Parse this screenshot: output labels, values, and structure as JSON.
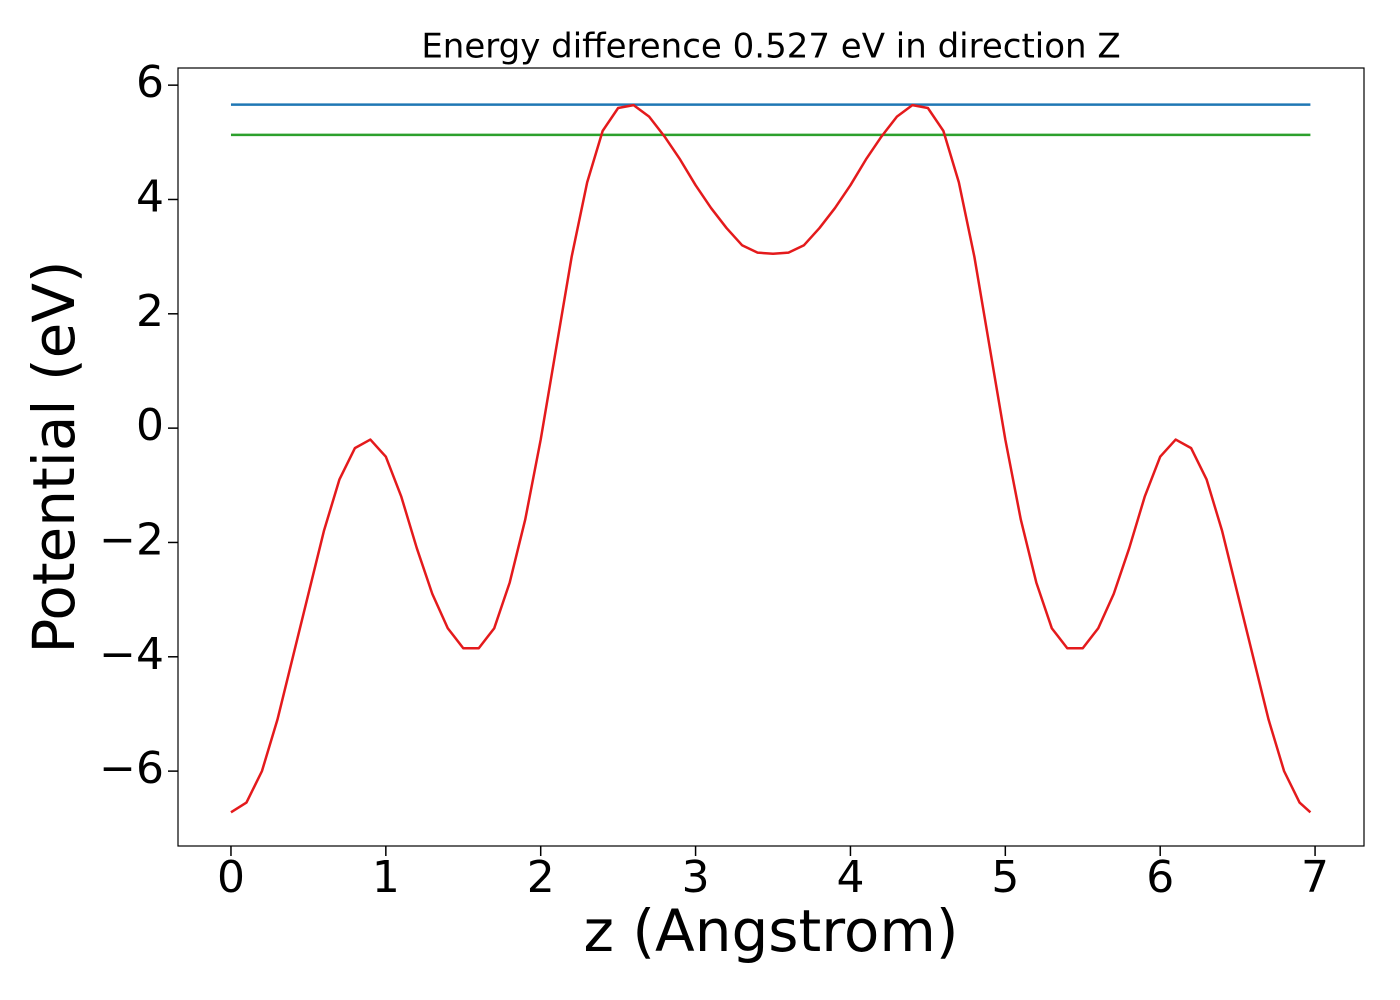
{
  "chart_data": {
    "type": "line",
    "title": "Energy difference 0.527 eV in direction Z",
    "xlabel": "z (Angstrom)",
    "ylabel": "Potential (eV)",
    "xlim": [
      -0.342,
      7.316
    ],
    "ylim": [
      -7.31,
      6.3
    ],
    "xticks": [
      0,
      1,
      2,
      3,
      4,
      5,
      6,
      7
    ],
    "yticks": [
      {
        "value": -6,
        "label": "−6"
      },
      {
        "value": -4,
        "label": "−4"
      },
      {
        "value": -2,
        "label": "−2"
      },
      0,
      2,
      4,
      6
    ],
    "series": [
      {
        "color": "#1f77b4",
        "x": [
          0,
          6.97
        ],
        "values": [
          5.66,
          5.66
        ]
      },
      {
        "color": "#2ca02c",
        "x": [
          0,
          6.97
        ],
        "values": [
          5.13,
          5.13
        ]
      },
      {
        "color": "#e41a1c",
        "x": [
          0,
          0.1,
          0.2,
          0.3,
          0.4,
          0.5,
          0.6,
          0.7,
          0.8,
          0.9,
          1.0,
          1.1,
          1.2,
          1.3,
          1.4,
          1.5,
          1.6,
          1.7,
          1.8,
          1.9,
          2.0,
          2.1,
          2.2,
          2.3,
          2.4,
          2.5,
          2.6,
          2.7,
          2.8,
          2.9,
          3.0,
          3.1,
          3.2,
          3.3,
          3.4,
          3.5,
          3.6,
          3.7,
          3.8,
          3.9,
          4.0,
          4.1,
          4.2,
          4.3,
          4.4,
          4.5,
          4.6,
          4.7,
          4.8,
          4.9,
          5.0,
          5.1,
          5.2,
          5.3,
          5.4,
          5.5,
          5.6,
          5.7,
          5.8,
          5.9,
          6.0,
          6.1,
          6.2,
          6.3,
          6.4,
          6.5,
          6.6,
          6.7,
          6.8,
          6.9,
          6.97
        ],
        "values": [
          -6.72,
          -6.55,
          -6.0,
          -5.1,
          -4.0,
          -2.9,
          -1.8,
          -0.9,
          -0.35,
          -0.2,
          -0.5,
          -1.2,
          -2.1,
          -2.9,
          -3.5,
          -3.85,
          -3.85,
          -3.5,
          -2.7,
          -1.6,
          -0.2,
          1.4,
          3.0,
          4.3,
          5.2,
          5.6,
          5.65,
          5.45,
          5.1,
          4.7,
          4.25,
          3.85,
          3.5,
          3.2,
          3.07,
          3.05,
          3.07,
          3.2,
          3.5,
          3.85,
          4.25,
          4.7,
          5.1,
          5.45,
          5.65,
          5.6,
          5.2,
          4.3,
          3.0,
          1.4,
          -0.2,
          -1.6,
          -2.7,
          -3.5,
          -3.85,
          -3.85,
          -3.5,
          -2.9,
          -2.1,
          -1.2,
          -0.5,
          -0.2,
          -0.35,
          -0.9,
          -1.8,
          -2.9,
          -4.0,
          -5.1,
          -6.0,
          -6.55,
          -6.72
        ]
      }
    ]
  }
}
